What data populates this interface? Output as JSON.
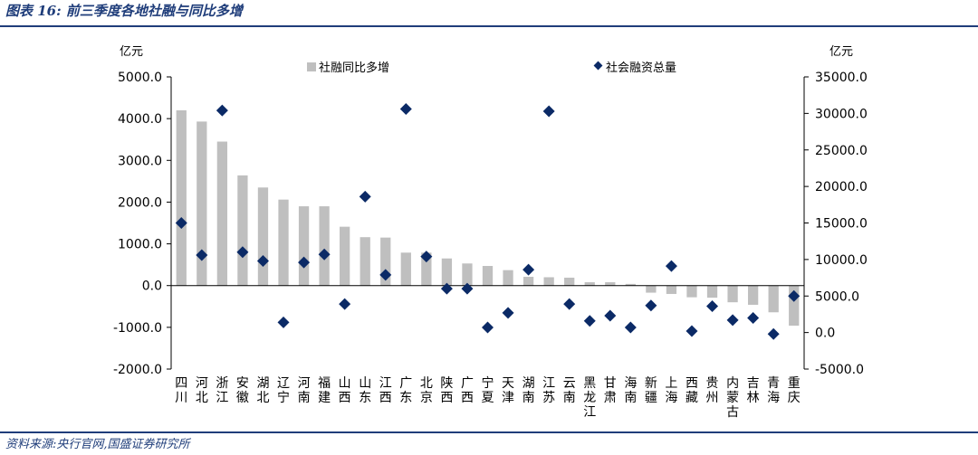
{
  "figure": {
    "title": "图表 16:  前三季度各地社融与同比多增",
    "source": "资料来源:央行官网,国盛证券研究所"
  },
  "colors": {
    "bar": "#bfbfbf",
    "marker": "#0b2a66",
    "axis": "#000000"
  },
  "chart_data": {
    "type": "bar",
    "categories": [
      "四川",
      "河北",
      "浙江",
      "安徽",
      "湖北",
      "辽宁",
      "河南",
      "福建",
      "山西",
      "山东",
      "江西",
      "广东",
      "北京",
      "陕西",
      "广西",
      "宁夏",
      "天津",
      "湖南",
      "江苏",
      "云南",
      "黑龙江",
      "甘肃",
      "海南",
      "新疆",
      "上海",
      "西藏",
      "贵州",
      "内蒙古",
      "吉林",
      "青海",
      "重庆"
    ],
    "series": [
      {
        "name": "社融同比多增",
        "type": "bar",
        "axis": "left",
        "values": [
          4200,
          3930,
          3450,
          2640,
          2350,
          2060,
          1900,
          1900,
          1410,
          1160,
          1150,
          790,
          790,
          650,
          530,
          470,
          370,
          210,
          200,
          190,
          80,
          80,
          40,
          -170,
          -200,
          -280,
          -290,
          -400,
          -460,
          -640,
          -960
        ]
      },
      {
        "name": "社会融资总量",
        "type": "scatter",
        "axis": "right",
        "values": [
          15000,
          10600,
          30400,
          11000,
          9800,
          1400,
          9600,
          10700,
          3900,
          18600,
          7900,
          30600,
          10400,
          6000,
          6000,
          700,
          2700,
          8600,
          30300,
          3900,
          1600,
          2300,
          700,
          3700,
          9100,
          200,
          3600,
          1700,
          2000,
          -200,
          5000
        ]
      }
    ],
    "y_left": {
      "label": "亿元",
      "ylim": [
        -2000,
        5000
      ],
      "ticks": [
        5000,
        4000,
        3000,
        2000,
        1000,
        0,
        -1000,
        -2000
      ],
      "tick_labels": [
        "5000.0",
        "4000.0",
        "3000.0",
        "2000.0",
        "1000.0",
        "0.0",
        "-1000.0",
        "-2000.0"
      ]
    },
    "y_right": {
      "label": "亿元",
      "ylim": [
        -5000,
        35000
      ],
      "ticks": [
        35000,
        30000,
        25000,
        20000,
        15000,
        10000,
        5000,
        0,
        -5000
      ],
      "tick_labels": [
        "35000.0",
        "30000.0",
        "25000.0",
        "20000.0",
        "15000.0",
        "10000.0",
        "5000.0",
        "0.0",
        "-5000.0"
      ]
    },
    "legend": "top",
    "grid": false
  }
}
